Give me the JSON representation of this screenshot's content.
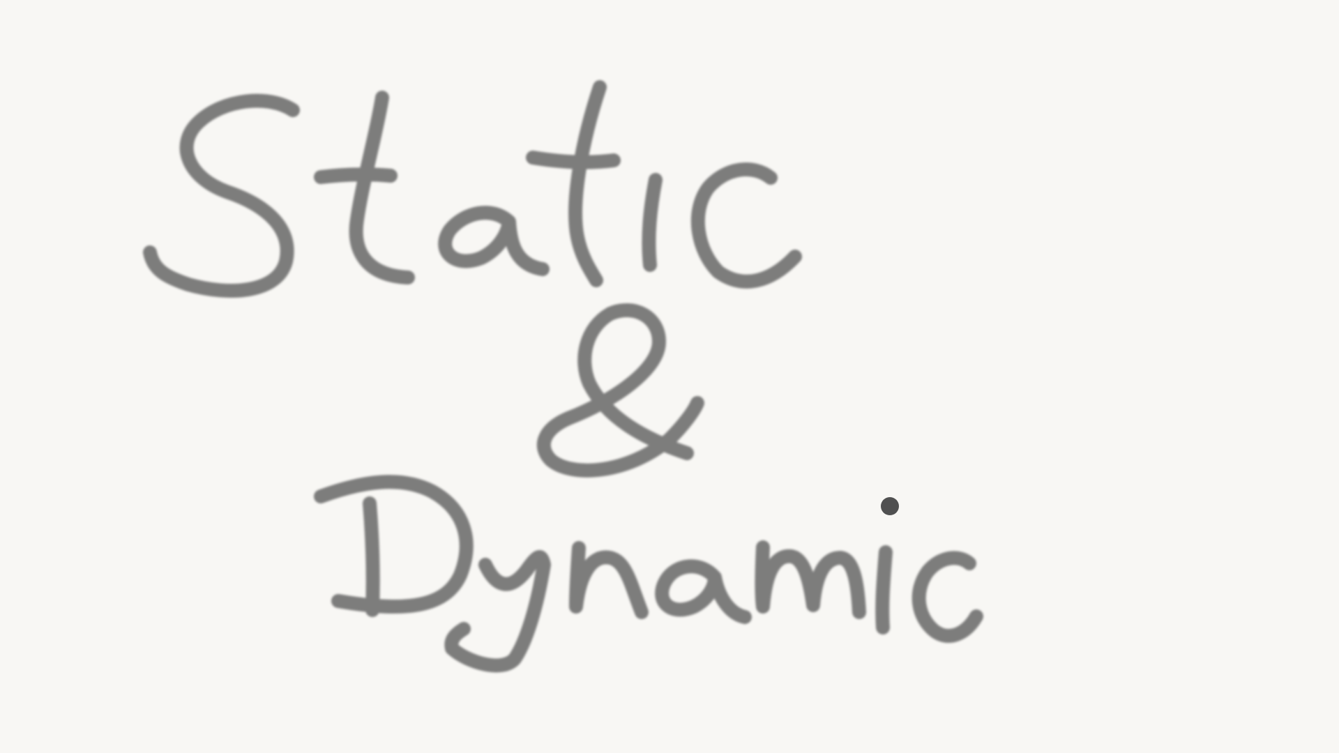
{
  "drawing": {
    "line1": "Static",
    "line2": "&",
    "line3": "Dynamic",
    "ink_color": "#6f6f6f",
    "dot_color": "#505050",
    "background_color": "#f8f7f4"
  }
}
